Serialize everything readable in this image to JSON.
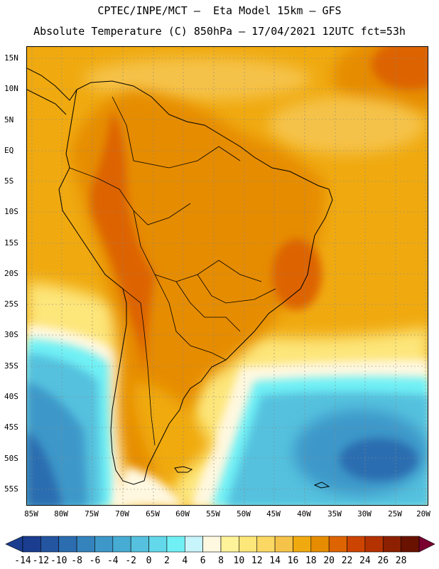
{
  "header": {
    "line1": "CPTEC/INPE/MCT –  Eta Model 15km – GFS",
    "line2": "Absolute Temperature (C) 850hPa – 17/04/2021 12UTC fct=53h"
  },
  "map": {
    "lat_labels": [
      "15N",
      "10N",
      "5N",
      "EQ",
      "5S",
      "10S",
      "15S",
      "20S",
      "25S",
      "30S",
      "35S",
      "40S",
      "45S",
      "50S",
      "55S"
    ],
    "lon_labels": [
      "85W",
      "80W",
      "75W",
      "70W",
      "65W",
      "60W",
      "55W",
      "50W",
      "45W",
      "40W",
      "35W",
      "30W",
      "25W",
      "20W"
    ]
  },
  "colorbar": {
    "labels": [
      "-14",
      "-12",
      "-10",
      "-8",
      "-6",
      "-4",
      "-2",
      "0",
      "2",
      "4",
      "6",
      "8",
      "10",
      "12",
      "14",
      "16",
      "18",
      "20",
      "22",
      "24",
      "26",
      "28"
    ],
    "colors": [
      "#1a3d8f",
      "#2455a0",
      "#2c6db0",
      "#3583bd",
      "#3d98c9",
      "#47acd3",
      "#55c1de",
      "#63d8ea",
      "#70f0f5",
      "#c8f4fb",
      "#fff8e0",
      "#fff39a",
      "#fde67a",
      "#fad863",
      "#f5c24a",
      "#f0aa10",
      "#e68c00",
      "#dd6400",
      "#cc4400",
      "#b43200",
      "#8c2000",
      "#6a1200"
    ]
  },
  "colors": {
    "ocean_tropical": "#f0aa10",
    "land_warm": "#e68c00",
    "andes_hot": "#dd6400",
    "sea_cool": "#47acd3",
    "sea_cold": "#2c6db0"
  }
}
